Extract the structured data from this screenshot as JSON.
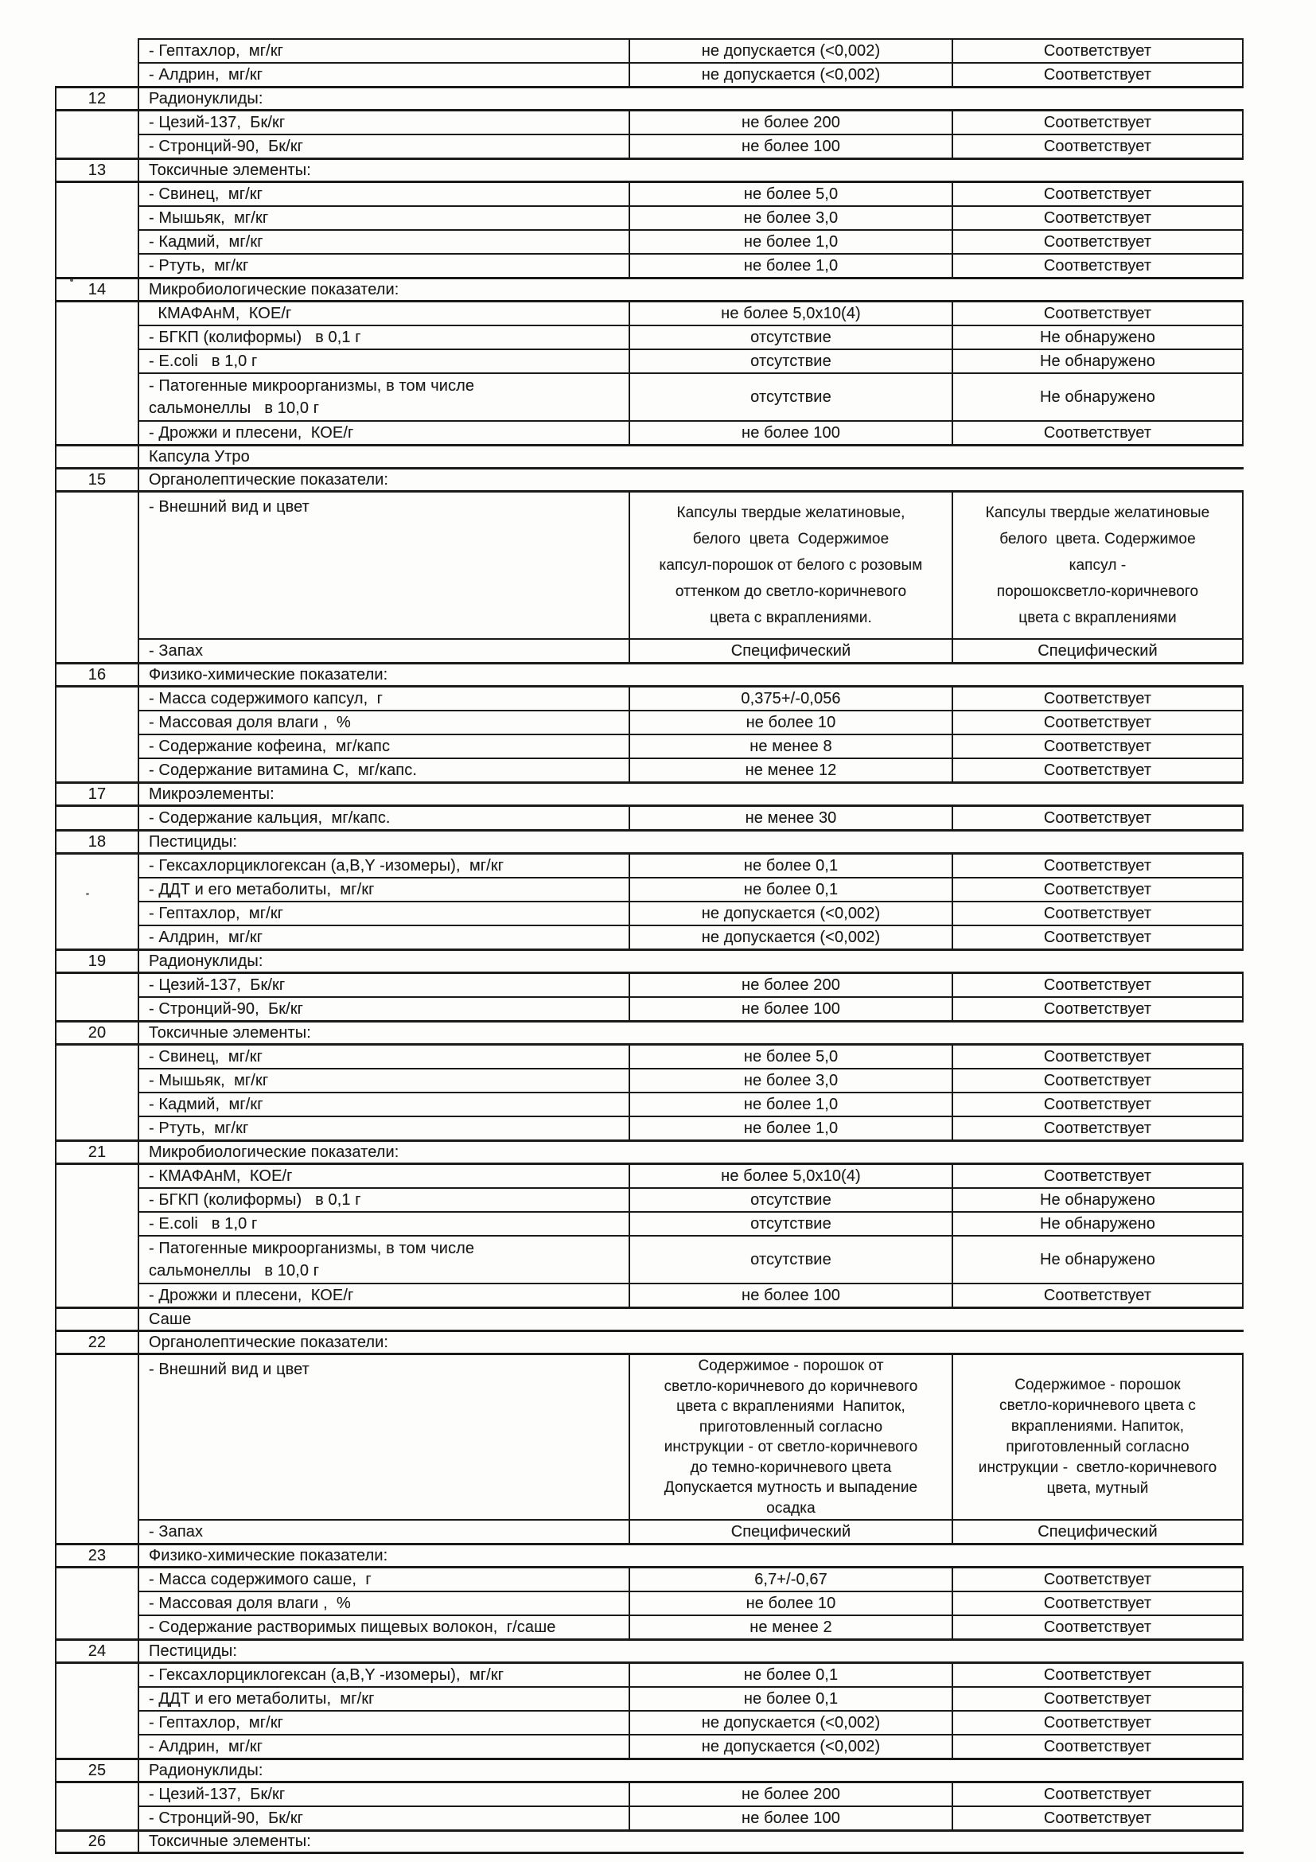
{
  "document": {
    "language": "ru",
    "ink_color": "#1a1a1a",
    "paper_color": "#fdfdfc",
    "kind": "scanned-quality-indicators-table"
  },
  "table": {
    "rows": [
      {
        "type": "param",
        "num": "",
        "name": "- Гептахлор,  мг/кг",
        "norm": "не допускается (<0,002)",
        "result": "Соответствует",
        "noleft": true
      },
      {
        "type": "param",
        "num": "",
        "name": "- Алдрин,  мг/кг",
        "norm": "не допускается (<0,002)",
        "result": "Соответствует",
        "noleft": true
      },
      {
        "type": "section",
        "num": "12",
        "title": "Радионуклиды:"
      },
      {
        "type": "param",
        "num": "",
        "name": "- Цезий-137,  Бк/кг",
        "norm": "не более 200",
        "result": "Соответствует"
      },
      {
        "type": "param",
        "num": "",
        "name": "- Стронций-90,  Бк/кг",
        "norm": "не более 100",
        "result": "Соответствует"
      },
      {
        "type": "section",
        "num": "13",
        "title": "Токсичные элементы:"
      },
      {
        "type": "param",
        "num": "",
        "name": "- Свинец,  мг/кг",
        "norm": "не более 5,0",
        "result": "Соответствует"
      },
      {
        "type": "param",
        "num": "",
        "name": "- Мышьяк,  мг/кг",
        "norm": "не более 3,0",
        "result": "Соответствует"
      },
      {
        "type": "param",
        "num": "",
        "name": "- Кадмий,  мг/кг",
        "norm": "не более 1,0",
        "result": "Соответствует"
      },
      {
        "type": "param",
        "num": "",
        "name": "- Ртуть,  мг/кг",
        "norm": "не более 1,0",
        "result": "Соответствует"
      },
      {
        "type": "section",
        "num": "14",
        "title": "Микробиологические показатели:"
      },
      {
        "type": "param",
        "num": "",
        "name": "  КМАФАнМ,  КОЕ/г",
        "norm": "не более 5,0х10(4)",
        "result": "Соответствует"
      },
      {
        "type": "param",
        "num": "",
        "name": "- БГКП (колиформы)   в 0,1 г",
        "norm": "отсутствие",
        "result": "Не обнаружено"
      },
      {
        "type": "param",
        "num": "",
        "name": "- E.coli   в 1,0 г",
        "norm": "отсутствие",
        "result": "Не обнаружено"
      },
      {
        "type": "param",
        "num": "",
        "name": "- Патогенные микроорганизмы, в том числе\nсальмонеллы   в 10,0 г",
        "norm": "отсутствие",
        "result": "Не обнаружено",
        "h": "h2"
      },
      {
        "type": "param",
        "num": "",
        "name": "- Дрожжи и плесени,  КОЕ/г",
        "norm": "не более 100",
        "result": "Соответствует"
      },
      {
        "type": "group",
        "num": "",
        "title": "Капсула Утро"
      },
      {
        "type": "section",
        "num": "15",
        "title": "Органолептические показатели:"
      },
      {
        "type": "param",
        "num": "",
        "name": "- Внешний вид и цвет",
        "norm": "Капсулы твердые желатиновые,\nбелого  цвета  Содержимое\nкапсул-порошок от белого с розовым\nоттенком до светло-коричневого\nцвета с вкраплениями.",
        "result": "Капсулы твердые желатиновые\nбелого  цвета. Содержимое\nкапсул -\nпорошоксветло-коричневого\nцвета с вкраплениями",
        "h": "d1"
      },
      {
        "type": "param",
        "num": "",
        "name": "- Запах",
        "norm": "Специфический",
        "result": "Специфический"
      },
      {
        "type": "section",
        "num": "16",
        "title": "Физико-химические показатели:"
      },
      {
        "type": "param",
        "num": "",
        "name": "- Масса содержимого капсул,  г",
        "norm": "0,375+/-0,056",
        "result": "Соответствует"
      },
      {
        "type": "param",
        "num": "",
        "name": "- Массовая доля влаги ,  %",
        "norm": "не более 10",
        "result": "Соответствует"
      },
      {
        "type": "param",
        "num": "",
        "name": "- Содержание кофеина,  мг/капс",
        "norm": "не менее 8",
        "result": "Соответствует"
      },
      {
        "type": "param",
        "num": "",
        "name": "- Содержание витамина С,  мг/капс.",
        "norm": "не менее 12",
        "result": "Соответствует"
      },
      {
        "type": "section",
        "num": "17",
        "title": "Микроэлементы:"
      },
      {
        "type": "param",
        "num": "",
        "name": "- Содержание кальция,  мг/капс.",
        "norm": "не менее 30",
        "result": "Соответствует"
      },
      {
        "type": "section",
        "num": "18",
        "title": "Пестициды:"
      },
      {
        "type": "param",
        "num": "",
        "name": "- Гексахлорциклогексан (a,B,Y -изомеры),  мг/кг",
        "norm": "не более 0,1",
        "result": "Соответствует"
      },
      {
        "type": "param",
        "num": "",
        "name": "- ДДТ и его метаболиты,  мг/кг",
        "norm": "не более 0,1",
        "result": "Соответствует"
      },
      {
        "type": "param",
        "num": "",
        "name": "- Гептахлор,  мг/кг",
        "norm": "не допускается (<0,002)",
        "result": "Соответствует"
      },
      {
        "type": "param",
        "num": "",
        "name": "- Алдрин,  мг/кг",
        "norm": "не допускается (<0,002)",
        "result": "Соответствует"
      },
      {
        "type": "section",
        "num": "19",
        "title": "Радионуклиды:"
      },
      {
        "type": "param",
        "num": "",
        "name": "- Цезий-137,  Бк/кг",
        "norm": "не более 200",
        "result": "Соответствует"
      },
      {
        "type": "param",
        "num": "",
        "name": "- Стронций-90,  Бк/кг",
        "norm": "не более 100",
        "result": "Соответствует"
      },
      {
        "type": "section",
        "num": "20",
        "title": "Токсичные элементы:"
      },
      {
        "type": "param",
        "num": "",
        "name": "- Свинец,  мг/кг",
        "norm": "не более 5,0",
        "result": "Соответствует"
      },
      {
        "type": "param",
        "num": "",
        "name": "- Мышьяк,  мг/кг",
        "norm": "не более 3,0",
        "result": "Соответствует"
      },
      {
        "type": "param",
        "num": "",
        "name": "- Кадмий,  мг/кг",
        "norm": "не более 1,0",
        "result": "Соответствует"
      },
      {
        "type": "param",
        "num": "",
        "name": "- Ртуть,  мг/кг",
        "norm": "не более 1,0",
        "result": "Соответствует"
      },
      {
        "type": "section",
        "num": "21",
        "title": "Микробиологические показатели:"
      },
      {
        "type": "param",
        "num": "",
        "name": "- КМАФАнМ,  КОЕ/г",
        "norm": "не более 5,0х10(4)",
        "result": "Соответствует"
      },
      {
        "type": "param",
        "num": "",
        "name": "- БГКП (колиформы)   в 0,1 г",
        "norm": "отсутствие",
        "result": "Не обнаружено"
      },
      {
        "type": "param",
        "num": "",
        "name": "- E.coli   в 1,0 г",
        "norm": "отсутствие",
        "result": "Не обнаружено"
      },
      {
        "type": "param",
        "num": "",
        "name": "- Патогенные микроорганизмы, в том числе\nсальмонеллы   в 10,0 г",
        "norm": "отсутствие",
        "result": "Не обнаружено",
        "h": "h2"
      },
      {
        "type": "param",
        "num": "",
        "name": "- Дрожжи и плесени,  КОЕ/г",
        "norm": "не более 100",
        "result": "Соответствует"
      },
      {
        "type": "group",
        "num": "",
        "title": "Саше"
      },
      {
        "type": "section",
        "num": "22",
        "title": "Органолептические показатели:"
      },
      {
        "type": "param",
        "num": "",
        "name": "- Внешний вид и цвет",
        "norm": "Содержимое - порошок от\nсветло-коричневого до коричневого\nцвета с вкраплениями  Напиток,\nприготовленный согласно\nинструкции - от светло-коричневого\nдо темно-коричневого цвета\nДопускается мутность и выпадение\nосадка",
        "result": "Содержимое - порошок\nсветло-коричневого цвета с\nвкраплениями. Напиток,\nприготовленный согласно\nинструкции -  светло-коричневого\nцвета, мутный",
        "h": "d2"
      },
      {
        "type": "param",
        "num": "",
        "name": "- Запах",
        "norm": "Специфический",
        "result": "Специфический"
      },
      {
        "type": "section",
        "num": "23",
        "title": "Физико-химические показатели:"
      },
      {
        "type": "param",
        "num": "",
        "name": "- Масса содержимого саше,  г",
        "norm": "6,7+/-0,67",
        "result": "Соответствует"
      },
      {
        "type": "param",
        "num": "",
        "name": "- Массовая доля влаги ,  %",
        "norm": "не более 10",
        "result": "Соответствует"
      },
      {
        "type": "param",
        "num": "",
        "name": "- Содержание растворимых пищевых волокон,  г/саше",
        "norm": "не менее 2",
        "result": "Соответствует"
      },
      {
        "type": "section",
        "num": "24",
        "title": "Пестициды:"
      },
      {
        "type": "param",
        "num": "",
        "name": "- Гексахлорциклогексан (a,B,Y -изомеры),  мг/кг",
        "norm": "не более 0,1",
        "result": "Соответствует"
      },
      {
        "type": "param",
        "num": "",
        "name": "- ДДТ и его метаболиты,  мг/кг",
        "norm": "не более 0,1",
        "result": "Соответствует"
      },
      {
        "type": "param",
        "num": "",
        "name": "- Гептахлор,  мг/кг",
        "norm": "не допускается (<0,002)",
        "result": "Соответствует"
      },
      {
        "type": "param",
        "num": "",
        "name": "- Алдрин,  мг/кг",
        "norm": "не допускается (<0,002)",
        "result": "Соответствует"
      },
      {
        "type": "section",
        "num": "25",
        "title": "Радионуклиды:"
      },
      {
        "type": "param",
        "num": "",
        "name": "- Цезий-137,  Бк/кг",
        "norm": "не более 200",
        "result": "Соответствует"
      },
      {
        "type": "param",
        "num": "",
        "name": "- Стронций-90,  Бк/кг",
        "norm": "не более 100",
        "result": "Соответствует"
      },
      {
        "type": "section",
        "num": "26",
        "title": "Токсичные элементы:"
      }
    ]
  }
}
